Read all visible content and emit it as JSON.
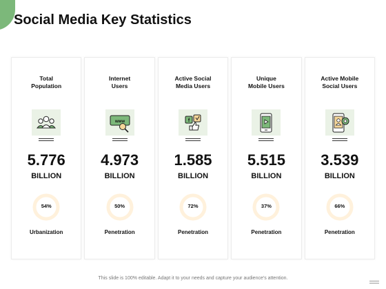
{
  "title": "Social Media Key Statistics",
  "accent_color": "#7cb87a",
  "ring_color": "#fff1dc",
  "panels": [
    {
      "label": "Total\nPopulation",
      "icon": "people-group-icon",
      "value": "5.776",
      "unit": "BILLION",
      "percent_text": "54%",
      "percent": 54,
      "metric": "Urbanization"
    },
    {
      "label": "Internet\nUsers",
      "icon": "www-search-icon",
      "value": "4.973",
      "unit": "BILLION",
      "percent_text": "50%",
      "percent": 50,
      "metric": "Penetration"
    },
    {
      "label": "Active Social\nMedia Users",
      "icon": "social-like-icon",
      "value": "1.585",
      "unit": "BILLION",
      "percent_text": "72%",
      "percent": 72,
      "metric": "Penetration"
    },
    {
      "label": "Unique\nMobile Users",
      "icon": "mobile-play-icon",
      "value": "5.515",
      "unit": "BILLION",
      "percent_text": "37%",
      "percent": 37,
      "metric": "Penetration"
    },
    {
      "label": "Active Mobile\nSocial Users",
      "icon": "mobile-user-icon",
      "value": "3.539",
      "unit": "BILLION",
      "percent_text": "66%",
      "percent": 66,
      "metric": "Penetration"
    }
  ],
  "footer": "This slide is 100% editable. Adapt it to your needs and capture your audience's attention."
}
